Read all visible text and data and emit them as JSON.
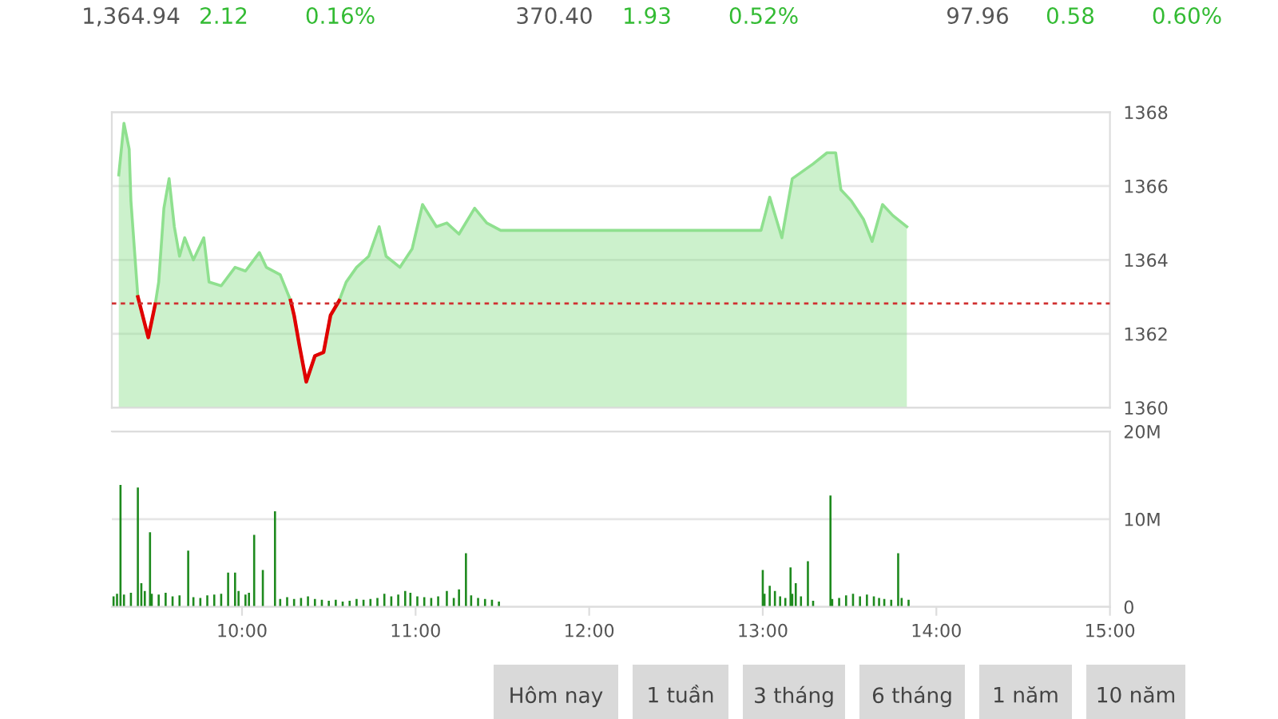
{
  "chart_data": [
    {
      "type": "area",
      "xlim": [
        9.25,
        15
      ],
      "ylim": [
        1360,
        1368
      ],
      "yticks": [
        1360,
        1362,
        1364,
        1366,
        1368
      ],
      "grid": "y",
      "tick_labels": "y",
      "x": [
        9.29,
        9.32,
        9.35,
        9.36,
        9.4,
        9.46,
        9.5,
        9.52,
        9.55,
        9.58,
        9.61,
        9.64,
        9.67,
        9.72,
        9.78,
        9.81,
        9.88,
        9.96,
        10.02,
        10.1,
        10.14,
        10.22,
        10.28,
        10.3,
        10.33,
        10.37,
        10.42,
        10.47,
        10.51,
        10.56,
        10.6,
        10.66,
        10.73,
        10.79,
        10.83,
        10.91,
        10.98,
        11.04,
        11.12,
        11.18,
        11.25,
        11.34,
        11.41,
        11.49,
        12.99,
        13.04,
        13.11,
        13.17,
        13.23,
        13.29,
        13.37,
        13.42,
        13.45,
        13.51,
        13.58,
        13.63,
        13.69,
        13.75,
        13.83
      ],
      "series": [
        {
          "type": "area",
          "color": "#8fe08f",
          "values": [
            1366.3,
            1367.7,
            1367.0,
            1365.6,
            1363.0,
            1361.9,
            1362.8,
            1363.4,
            1365.4,
            1366.2,
            1364.9,
            1364.1,
            1364.6,
            1364.0,
            1364.6,
            1363.4,
            1363.3,
            1363.8,
            1363.7,
            1364.2,
            1363.8,
            1363.6,
            1362.9,
            1362.5,
            1361.7,
            1360.7,
            1361.4,
            1361.5,
            1362.5,
            1362.9,
            1363.4,
            1363.8,
            1364.1,
            1364.9,
            1364.1,
            1363.8,
            1364.3,
            1365.5,
            1364.9,
            1365.0,
            1364.7,
            1365.4,
            1365.0,
            1364.8,
            1364.8,
            1365.7,
            1364.6,
            1366.2,
            1366.4,
            1366.6,
            1366.9,
            1366.9,
            1365.9,
            1365.6,
            1365.1,
            1364.5,
            1365.5,
            1365.2,
            1364.9
          ]
        },
        {
          "type": "line",
          "color": "#e00000",
          "values": [
            null,
            null,
            null,
            null,
            1363.0,
            1361.9,
            1362.8,
            null,
            null,
            null,
            null,
            null,
            null,
            null,
            null,
            null,
            null,
            null,
            null,
            null,
            null,
            null,
            1362.9,
            1362.5,
            1361.7,
            1360.7,
            1361.4,
            1361.5,
            1362.5,
            1362.9,
            null,
            null,
            null,
            null,
            null,
            null,
            null,
            null,
            null,
            null,
            null,
            null,
            null,
            null,
            null,
            null,
            null,
            null,
            null,
            null,
            null,
            null,
            null,
            null,
            null,
            null,
            null,
            null,
            null
          ]
        }
      ],
      "ref_lines": [
        {
          "axis": "y",
          "value": 1362.82,
          "color": "#d03030",
          "line_style": "dashed"
        }
      ],
      "annotations": [
        "1,364.94",
        "2.12",
        "0.16%",
        "370.40",
        "1.93",
        "0.52%",
        "97.96",
        "0.58",
        "0.60%"
      ]
    },
    {
      "type": "bar",
      "xlim": [
        9.25,
        15
      ],
      "ylim": [
        0,
        20
      ],
      "grid": "y",
      "yticks": [
        0,
        {
          "value": 10,
          "label": "10M"
        },
        {
          "value": 20,
          "label": "20M"
        }
      ],
      "xticks": [
        {
          "value": 10,
          "label": "10:00"
        },
        {
          "value": 11,
          "label": "11:00"
        },
        {
          "value": 12,
          "label": "12:00"
        },
        {
          "value": 13,
          "label": "13:00"
        },
        {
          "value": 14,
          "label": "14:00"
        },
        {
          "value": 15,
          "label": "15:00"
        }
      ],
      "series": [
        {
          "color": "#1e8a1e",
          "x": [
            9.26,
            9.28,
            9.3,
            9.32,
            9.36,
            9.4,
            9.42,
            9.44,
            9.47,
            9.48,
            9.52,
            9.56,
            9.6,
            9.64,
            9.69,
            9.72,
            9.76,
            9.8,
            9.84,
            9.88,
            9.92,
            9.96,
            9.98,
            10.02,
            10.04,
            10.07,
            10.12,
            10.19,
            10.22,
            10.26,
            10.3,
            10.34,
            10.38,
            10.42,
            10.46,
            10.5,
            10.54,
            10.58,
            10.62,
            10.66,
            10.7,
            10.74,
            10.78,
            10.82,
            10.86,
            10.9,
            10.94,
            10.97,
            11.01,
            11.05,
            11.09,
            11.13,
            11.18,
            11.22,
            11.25,
            11.29,
            11.32,
            11.36,
            11.4,
            11.44,
            11.48,
            13.0,
            13.01,
            13.04,
            13.07,
            13.1,
            13.13,
            13.16,
            13.17,
            13.19,
            13.22,
            13.26,
            13.29,
            13.39,
            13.4,
            13.44,
            13.48,
            13.52,
            13.56,
            13.6,
            13.64,
            13.67,
            13.7,
            13.74,
            13.78,
            13.8,
            13.84
          ],
          "values": [
            1.2,
            1.5,
            13.9,
            1.4,
            1.6,
            13.6,
            2.7,
            1.8,
            8.5,
            1.5,
            1.4,
            1.6,
            1.2,
            1.3,
            6.4,
            1.1,
            1.0,
            1.3,
            1.4,
            1.5,
            3.9,
            3.9,
            1.8,
            1.4,
            1.6,
            8.2,
            4.2,
            10.9,
            0.9,
            1.1,
            0.9,
            1.0,
            1.2,
            0.9,
            0.8,
            0.7,
            0.8,
            0.6,
            0.7,
            0.9,
            0.8,
            0.9,
            1.0,
            1.5,
            1.2,
            1.4,
            1.8,
            1.6,
            1.2,
            1.1,
            1.0,
            1.2,
            1.8,
            1.0,
            2.0,
            6.1,
            1.3,
            1.0,
            0.9,
            0.8,
            0.6,
            4.2,
            1.5,
            2.4,
            1.8,
            1.2,
            1.0,
            4.5,
            1.5,
            2.7,
            1.2,
            5.2,
            0.7,
            12.7,
            0.9,
            1.0,
            1.3,
            1.5,
            1.2,
            1.4,
            1.2,
            1.0,
            0.9,
            0.8,
            6.1,
            1.0,
            0.8
          ]
        }
      ],
      "annotations": [
        "Hôm nay",
        "1 tuần",
        "3 tháng",
        "6 tháng",
        "1 năm",
        "10 năm"
      ]
    }
  ]
}
